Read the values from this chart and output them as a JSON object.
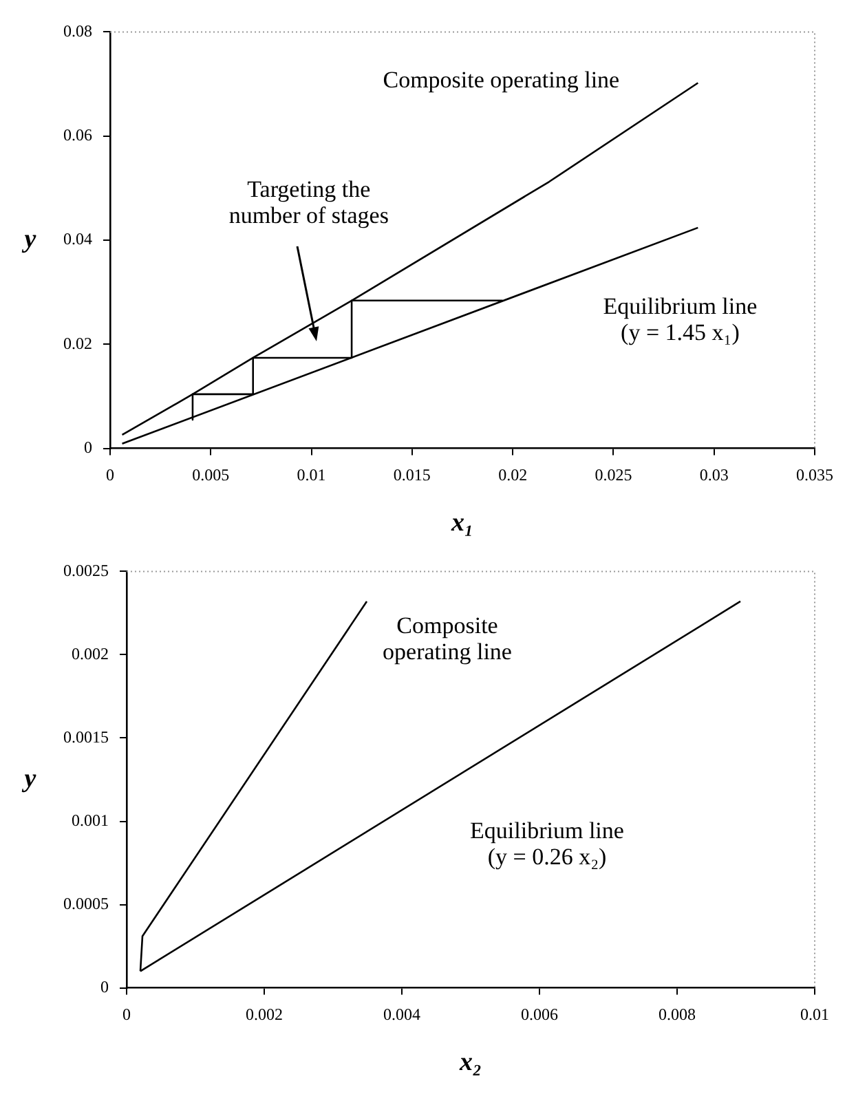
{
  "chart_data": [
    {
      "type": "line",
      "xlabel": "x₁",
      "ylabel": "y",
      "xlim": [
        0,
        0.035
      ],
      "xticks": [
        0,
        0.005,
        0.01,
        0.015,
        0.02,
        0.025,
        0.03,
        0.035
      ],
      "ylim": [
        0,
        0.08
      ],
      "yticks": [
        0,
        0.02,
        0.04,
        0.06,
        0.08
      ],
      "grid": false,
      "marker": "none",
      "line_style": "solid",
      "series": [
        {
          "color": "#000000",
          "x": [
            0.0006,
            0.0041,
            0.0071,
            0.012,
            0.0218,
            0.0292
          ],
          "values": [
            0.0026,
            0.0104,
            0.0174,
            0.0284,
            0.0512,
            0.0702
          ]
        },
        {
          "color": "#000000",
          "x": [
            0.0006,
            0.0292
          ],
          "values": [
            0.0009,
            0.0424
          ]
        },
        {
          "color": "#000000",
          "x": [
            0.0195,
            0.012,
            0.012,
            0.0071,
            0.0071,
            0.0041,
            0.0041
          ],
          "values": [
            0.0284,
            0.0284,
            0.0174,
            0.0174,
            0.0104,
            0.0104,
            0.0055
          ]
        }
      ],
      "annotations": [
        "Composite operating line",
        "Targeting the\nnumber of stages",
        "Equilibrium line\n(y = 1.45 x₁)"
      ]
    },
    {
      "type": "line",
      "xlabel": "x₂",
      "ylabel": "y",
      "xlim": [
        0,
        0.01
      ],
      "xticks": [
        0,
        0.002,
        0.004,
        0.006,
        0.008,
        0.01
      ],
      "ylim": [
        0,
        0.0025
      ],
      "yticks": [
        0,
        0.0005,
        0.001,
        0.0015,
        0.002,
        0.0025
      ],
      "grid": false,
      "marker": "none",
      "line_style": "solid",
      "series": [
        {
          "color": "#000000",
          "x": [
            0.0002,
            0.00023,
            0.00349
          ],
          "values": [
            0.0001,
            0.00031,
            0.00232
          ]
        },
        {
          "color": "#000000",
          "x": [
            0.0002,
            0.00892
          ],
          "values": [
            0.0001,
            0.00232
          ]
        }
      ],
      "annotations": [
        "Composite\noperating line",
        "Equilibrium line\n(y = 0.26 x₂)"
      ]
    }
  ]
}
